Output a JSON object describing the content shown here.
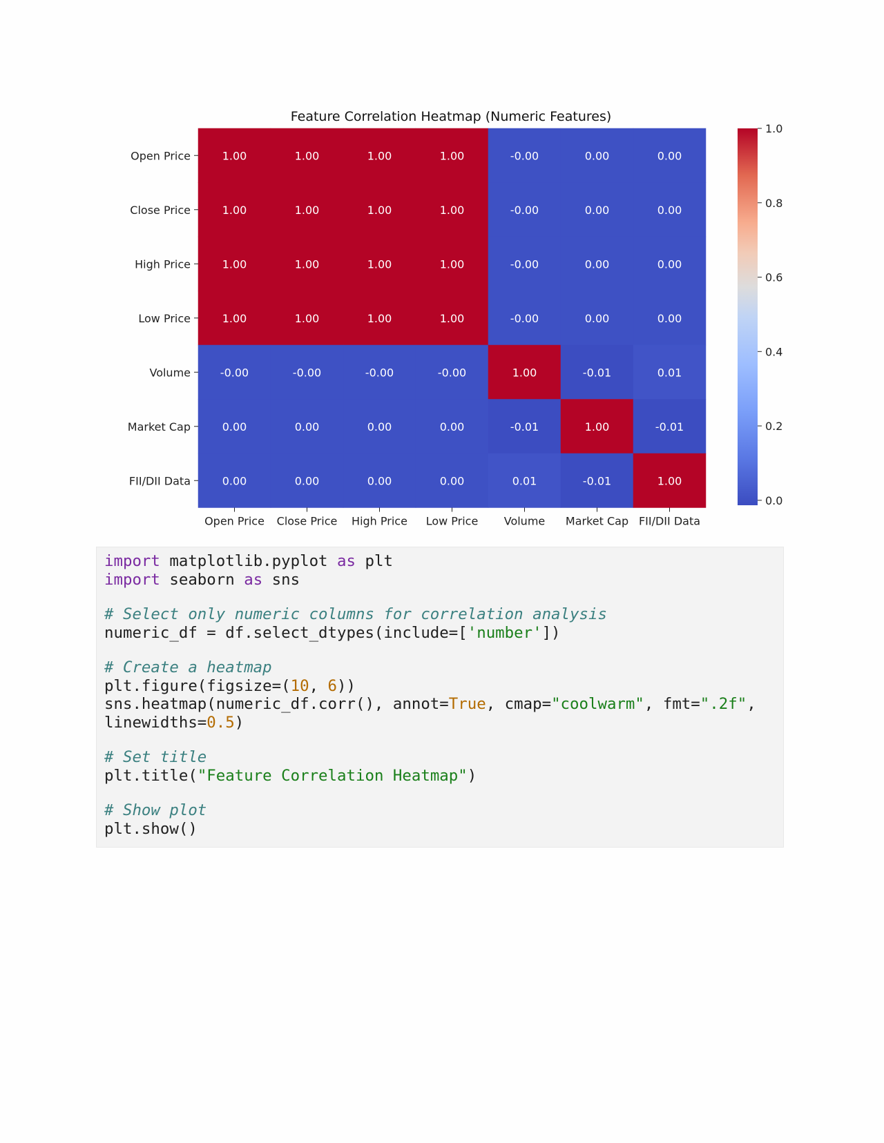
{
  "chart_data": {
    "type": "heatmap",
    "title": "Feature Correlation Heatmap (Numeric Features)",
    "rows": [
      "Open Price",
      "Close Price",
      "High Price",
      "Low Price",
      "Volume",
      "Market Cap",
      "FII/DII Data"
    ],
    "columns": [
      "Open Price",
      "Close Price",
      "High Price",
      "Low Price",
      "Volume",
      "Market Cap",
      "FII/DII Data"
    ],
    "values": [
      [
        1.0,
        1.0,
        1.0,
        1.0,
        -0.0,
        0.0,
        0.0
      ],
      [
        1.0,
        1.0,
        1.0,
        1.0,
        -0.0,
        0.0,
        0.0
      ],
      [
        1.0,
        1.0,
        1.0,
        1.0,
        -0.0,
        0.0,
        0.0
      ],
      [
        1.0,
        1.0,
        1.0,
        1.0,
        -0.0,
        0.0,
        0.0
      ],
      [
        -0.0,
        -0.0,
        -0.0,
        -0.0,
        1.0,
        -0.01,
        0.01
      ],
      [
        0.0,
        0.0,
        0.0,
        0.0,
        -0.01,
        1.0,
        -0.01
      ],
      [
        0.0,
        0.0,
        0.0,
        0.0,
        0.01,
        -0.01,
        1.0
      ]
    ],
    "labels": [
      [
        "1.00",
        "1.00",
        "1.00",
        "1.00",
        "-0.00",
        "0.00",
        "0.00"
      ],
      [
        "1.00",
        "1.00",
        "1.00",
        "1.00",
        "-0.00",
        "0.00",
        "0.00"
      ],
      [
        "1.00",
        "1.00",
        "1.00",
        "1.00",
        "-0.00",
        "0.00",
        "0.00"
      ],
      [
        "1.00",
        "1.00",
        "1.00",
        "1.00",
        "-0.00",
        "0.00",
        "0.00"
      ],
      [
        "-0.00",
        "-0.00",
        "-0.00",
        "-0.00",
        "1.00",
        "-0.01",
        "0.01"
      ],
      [
        "0.00",
        "0.00",
        "0.00",
        "0.00",
        "-0.01",
        "1.00",
        "-0.01"
      ],
      [
        "0.00",
        "0.00",
        "0.00",
        "0.00",
        "0.01",
        "-0.01",
        "1.00"
      ]
    ],
    "colormap": "coolwarm",
    "color_low": "#3b4cc0",
    "color_mid": "#dddddd",
    "color_high": "#b40426",
    "colorbar_range": [
      -0.0133,
      1.0
    ],
    "colorbar_ticks": [
      "0.0",
      "0.2",
      "0.4",
      "0.6",
      "0.8",
      "1.0"
    ],
    "colorbar_tick_values": [
      0.0,
      0.2,
      0.4,
      0.6,
      0.8,
      1.0
    ]
  },
  "code": {
    "lines": [
      [
        {
          "t": "kw",
          "s": "import"
        },
        {
          "t": "plain",
          "s": " matplotlib.pyplot "
        },
        {
          "t": "kw",
          "s": "as"
        },
        {
          "t": "plain",
          "s": " plt"
        }
      ],
      [
        {
          "t": "kw",
          "s": "import"
        },
        {
          "t": "plain",
          "s": " seaborn "
        },
        {
          "t": "kw",
          "s": "as"
        },
        {
          "t": "plain",
          "s": " sns"
        }
      ],
      [],
      [
        {
          "t": "com",
          "s": "# Select only numeric columns for correlation analysis"
        }
      ],
      [
        {
          "t": "plain",
          "s": "numeric_df = df.select_dtypes(include=["
        },
        {
          "t": "str",
          "s": "'number'"
        },
        {
          "t": "plain",
          "s": "])"
        }
      ],
      [],
      [
        {
          "t": "com",
          "s": "# Create a heatmap"
        }
      ],
      [
        {
          "t": "plain",
          "s": "plt.figure(figsize=("
        },
        {
          "t": "num",
          "s": "10"
        },
        {
          "t": "plain",
          "s": ", "
        },
        {
          "t": "num",
          "s": "6"
        },
        {
          "t": "plain",
          "s": "))"
        }
      ],
      [
        {
          "t": "plain",
          "s": "sns.heatmap(numeric_df.corr(), annot="
        },
        {
          "t": "num",
          "s": "True"
        },
        {
          "t": "plain",
          "s": ", cmap="
        },
        {
          "t": "str",
          "s": "\"coolwarm\""
        },
        {
          "t": "plain",
          "s": ", fmt="
        },
        {
          "t": "str",
          "s": "\".2f\""
        },
        {
          "t": "plain",
          "s": ","
        }
      ],
      [
        {
          "t": "plain",
          "s": "linewidths="
        },
        {
          "t": "num",
          "s": "0.5"
        },
        {
          "t": "plain",
          "s": ")"
        }
      ],
      [],
      [
        {
          "t": "com",
          "s": "# Set title"
        }
      ],
      [
        {
          "t": "plain",
          "s": "plt.title("
        },
        {
          "t": "str",
          "s": "\"Feature Correlation Heatmap\""
        },
        {
          "t": "plain",
          "s": ")"
        }
      ],
      [],
      [
        {
          "t": "com",
          "s": "# Show plot"
        }
      ],
      [
        {
          "t": "plain",
          "s": "plt.show()"
        }
      ]
    ]
  }
}
